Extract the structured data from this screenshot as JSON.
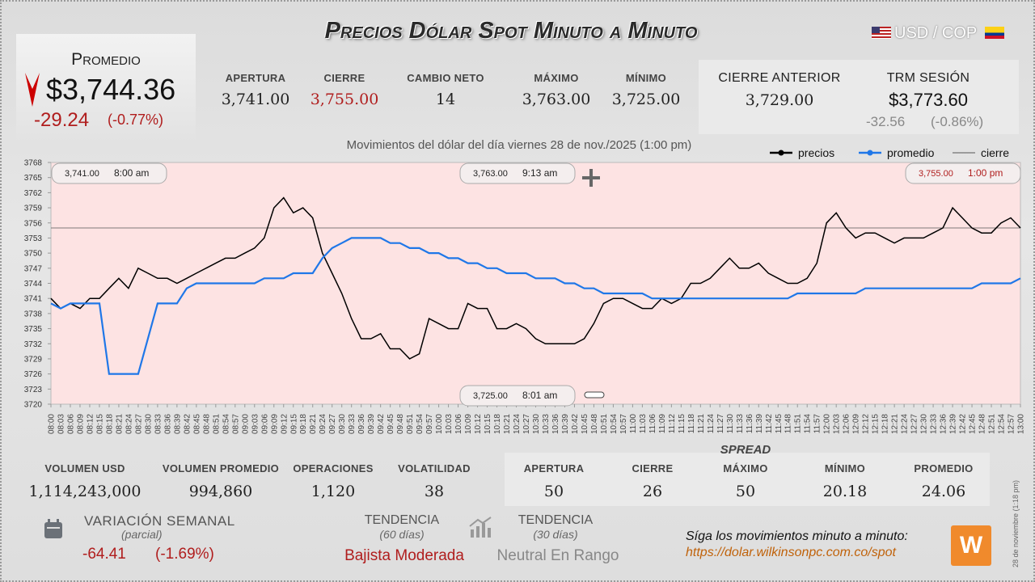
{
  "header": {
    "title": "Precios Dólar Spot Minuto a Minuto",
    "pair": "USD / COP"
  },
  "promedio": {
    "label": "Promedio",
    "value": "$3,744.36",
    "change": "-29.24",
    "change_pct": "(-0.77%)"
  },
  "summary": [
    {
      "label": "APERTURA",
      "value": "3,741.00"
    },
    {
      "label": "CIERRE",
      "value": "3,755.00"
    },
    {
      "label": "CAMBIO NETO",
      "value": "14"
    },
    {
      "label": "MÁXIMO",
      "value": "3,763.00"
    },
    {
      "label": "MÍNIMO",
      "value": "3,725.00"
    }
  ],
  "previous": {
    "label": "CIERRE ANTERIOR",
    "value": "3,729.00"
  },
  "trm": {
    "label": "TRM SESIÓN",
    "value": "$3,773.60",
    "change": "-32.56",
    "change_pct": "(-0.86%)"
  },
  "chart_data": {
    "type": "line",
    "title": "Movimientos del dólar del día viernes 28 de nov./2025 (1:00 pm)",
    "categories": [
      "08:00",
      "08:03",
      "08:06",
      "08:09",
      "08:12",
      "08:15",
      "08:18",
      "08:21",
      "08:24",
      "08:27",
      "08:30",
      "08:33",
      "08:36",
      "08:39",
      "08:42",
      "08:45",
      "08:48",
      "08:51",
      "08:54",
      "08:57",
      "09:00",
      "09:03",
      "09:06",
      "09:09",
      "09:12",
      "09:15",
      "09:18",
      "09:21",
      "09:24",
      "09:27",
      "09:30",
      "09:33",
      "09:36",
      "09:39",
      "09:42",
      "09:45",
      "09:48",
      "09:51",
      "09:54",
      "09:57",
      "10:00",
      "10:03",
      "10:06",
      "10:09",
      "10:12",
      "10:15",
      "10:18",
      "10:21",
      "10:24",
      "10:27",
      "10:30",
      "10:33",
      "10:36",
      "10:39",
      "10:42",
      "10:45",
      "10:48",
      "10:51",
      "10:54",
      "10:57",
      "11:00",
      "11:03",
      "11:06",
      "11:09",
      "11:12",
      "11:15",
      "11:18",
      "11:21",
      "11:24",
      "11:27",
      "11:30",
      "11:33",
      "11:36",
      "11:39",
      "11:42",
      "11:45",
      "11:48",
      "11:51",
      "11:54",
      "11:57",
      "12:00",
      "12:03",
      "12:06",
      "12:09",
      "12:12",
      "12:15",
      "12:18",
      "12:21",
      "12:24",
      "12:27",
      "12:30",
      "12:33",
      "12:36",
      "12:39",
      "12:42",
      "12:45",
      "12:48",
      "12:51",
      "12:54",
      "12:57",
      "13:00"
    ],
    "series": [
      {
        "name": "precios",
        "color": "#000000",
        "values": [
          3741,
          3739,
          3740,
          3739,
          3741,
          3741,
          3743,
          3745,
          3743,
          3747,
          3746,
          3745,
          3745,
          3744,
          3745,
          3746,
          3747,
          3748,
          3749,
          3749,
          3750,
          3751,
          3753,
          3759,
          3761,
          3758,
          3759,
          3757,
          3750,
          3746,
          3742,
          3737,
          3733,
          3733,
          3734,
          3731,
          3731,
          3729,
          3730,
          3737,
          3736,
          3735,
          3735,
          3740,
          3739,
          3739,
          3735,
          3735,
          3736,
          3735,
          3733,
          3732,
          3732,
          3732,
          3732,
          3733,
          3736,
          3740,
          3741,
          3741,
          3740,
          3739,
          3739,
          3741,
          3740,
          3741,
          3744,
          3744,
          3745,
          3747,
          3749,
          3747,
          3747,
          3748,
          3746,
          3745,
          3744,
          3744,
          3745,
          3748,
          3756,
          3758,
          3755,
          3753,
          3754,
          3754,
          3753,
          3752,
          3753,
          3753,
          3753,
          3754,
          3755,
          3759,
          3757,
          3755,
          3754,
          3754,
          3756,
          3757,
          3755
        ]
      },
      {
        "name": "promedio",
        "color": "#1f77e8",
        "values": [
          3740,
          3739,
          3740,
          3740,
          3740,
          3740,
          3726,
          3726,
          3726,
          3726,
          3733,
          3740,
          3740,
          3740,
          3743,
          3744,
          3744,
          3744,
          3744,
          3744,
          3744,
          3744,
          3745,
          3745,
          3745,
          3746,
          3746,
          3746,
          3749,
          3751,
          3752,
          3753,
          3753,
          3753,
          3753,
          3752,
          3752,
          3751,
          3751,
          3750,
          3750,
          3749,
          3749,
          3748,
          3748,
          3747,
          3747,
          3746,
          3746,
          3746,
          3745,
          3745,
          3745,
          3744,
          3744,
          3743,
          3743,
          3742,
          3742,
          3742,
          3742,
          3742,
          3741,
          3741,
          3741,
          3741,
          3741,
          3741,
          3741,
          3741,
          3741,
          3741,
          3741,
          3741,
          3741,
          3741,
          3741,
          3742,
          3742,
          3742,
          3742,
          3742,
          3742,
          3742,
          3743,
          3743,
          3743,
          3743,
          3743,
          3743,
          3743,
          3743,
          3743,
          3743,
          3743,
          3743,
          3744,
          3744,
          3744,
          3744,
          3745
        ]
      }
    ],
    "close_line": {
      "name": "cierre",
      "value": 3755,
      "color": "#555555"
    },
    "annotations": [
      {
        "value": "3,741.00",
        "time": "8:00 am"
      },
      {
        "value": "3,763.00",
        "time": "9:13 am"
      },
      {
        "value": "3,755.00",
        "time": "1:00 pm"
      },
      {
        "value": "3,725.00",
        "time": "8:01 am"
      }
    ],
    "ylim": [
      3720,
      3768
    ],
    "yticks": [
      3720,
      3723,
      3726,
      3729,
      3732,
      3735,
      3738,
      3741,
      3744,
      3747,
      3750,
      3753,
      3756,
      3759,
      3762,
      3765,
      3768
    ]
  },
  "stats": [
    {
      "label": "VOLUMEN USD",
      "value": "1,114,243,000"
    },
    {
      "label": "VOLUMEN PROMEDIO",
      "value": "994,860"
    },
    {
      "label": "OPERACIONES",
      "value": "1,120"
    },
    {
      "label": "VOLATILIDAD",
      "value": "38"
    }
  ],
  "spread": {
    "title": "SPREAD",
    "items": [
      {
        "label": "APERTURA",
        "value": "50"
      },
      {
        "label": "CIERRE",
        "value": "26"
      },
      {
        "label": "MÁXIMO",
        "value": "50"
      },
      {
        "label": "MÍNIMO",
        "value": "20.18"
      },
      {
        "label": "PROMEDIO",
        "value": "24.06"
      }
    ]
  },
  "weekly": {
    "label": "VARIACIÓN SEMANAL",
    "note": "(parcial)",
    "change": "-64.41",
    "change_pct": "(-1.69%)"
  },
  "trend60": {
    "label": "TENDENCIA",
    "note": "(60 días)",
    "value": "Bajista Moderada"
  },
  "trend30": {
    "label": "TENDENCIA",
    "note": "(30 días)",
    "value": "Neutral En Rango"
  },
  "footer": {
    "text": "Síga los movimientos minuto a minuto:",
    "url": "https://dolar.wilkinsonpc.com.co/spot",
    "stamp": "28 de noviembre (1:18 pm)"
  }
}
